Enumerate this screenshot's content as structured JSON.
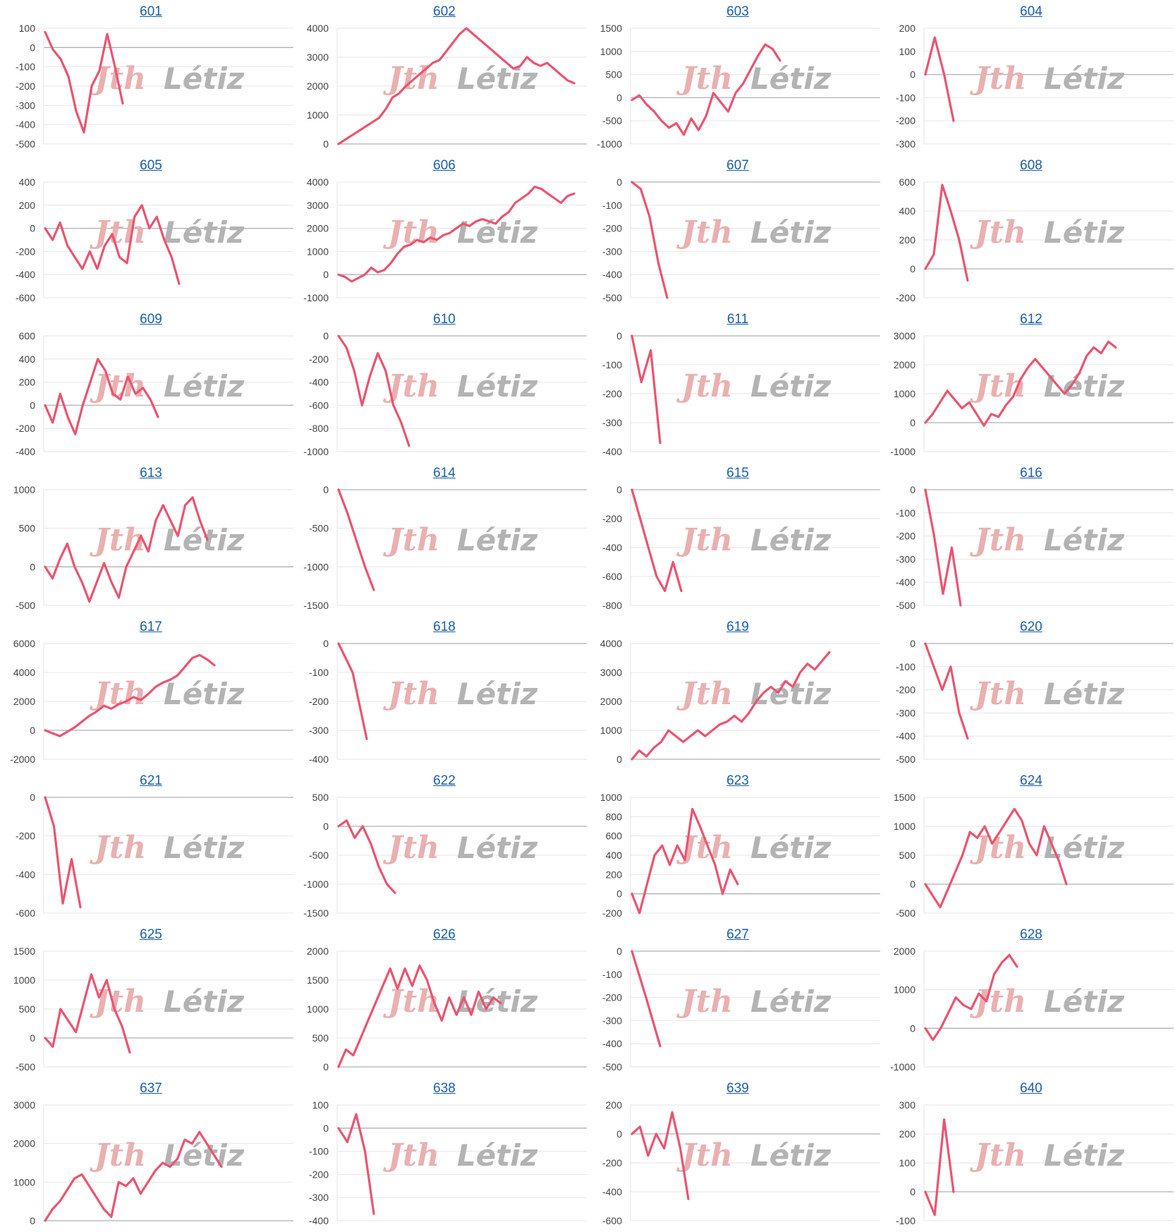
{
  "watermark": {
    "part1": "Jth",
    "part2": "Létiz",
    "color1": "#e9b0b0",
    "color2": "#b3b3b3"
  },
  "line_color": "#ea5470",
  "link_color": "#1a5ea8",
  "chart_data": [
    {
      "title": "601",
      "type": "line",
      "ylim": [
        -500,
        100
      ],
      "yticks": [
        100,
        0,
        -100,
        -200,
        -300,
        -400,
        -500
      ],
      "y": [
        80,
        -10,
        -60,
        -150,
        -330,
        -440,
        -200,
        -120,
        70,
        -100,
        -290
      ]
    },
    {
      "title": "602",
      "type": "line",
      "ylim": [
        0,
        4000
      ],
      "yticks": [
        4000,
        3000,
        2000,
        1000,
        0
      ],
      "y": [
        0,
        150,
        300,
        450,
        600,
        750,
        900,
        1200,
        1600,
        1750,
        2000,
        2200,
        2400,
        2600,
        2800,
        2900,
        3200,
        3500,
        3800,
        4000,
        3800,
        3600,
        3400,
        3200,
        3000,
        2800,
        2600,
        2700,
        3000,
        2800,
        2700,
        2800,
        2600,
        2400,
        2200,
        2100
      ]
    },
    {
      "title": "603",
      "type": "line",
      "ylim": [
        -1000,
        1500
      ],
      "yticks": [
        1500,
        1000,
        500,
        0,
        -500,
        -1000
      ],
      "y": [
        -50,
        50,
        -150,
        -300,
        -500,
        -650,
        -550,
        -800,
        -450,
        -700,
        -400,
        100,
        -100,
        -300,
        100,
        300,
        600,
        900,
        1150,
        1050,
        800
      ]
    },
    {
      "title": "604",
      "type": "line",
      "ylim": [
        -300,
        200
      ],
      "yticks": [
        200,
        100,
        0,
        -100,
        -200,
        -300
      ],
      "y": [
        0,
        160,
        0,
        -200
      ]
    },
    {
      "title": "605",
      "type": "line",
      "ylim": [
        -600,
        400
      ],
      "yticks": [
        400,
        200,
        0,
        -200,
        -400,
        -600
      ],
      "y": [
        0,
        -100,
        50,
        -150,
        -250,
        -350,
        -200,
        -350,
        -150,
        -50,
        -250,
        -300,
        100,
        200,
        0,
        100,
        -100,
        -250,
        -480
      ]
    },
    {
      "title": "606",
      "type": "line",
      "ylim": [
        -1000,
        4000
      ],
      "yticks": [
        4000,
        3000,
        2000,
        1000,
        0,
        -1000
      ],
      "y": [
        0,
        -100,
        -300,
        -150,
        0,
        300,
        100,
        200,
        500,
        900,
        1200,
        1300,
        1500,
        1400,
        1600,
        1500,
        1700,
        1800,
        2000,
        2200,
        2100,
        2300,
        2400,
        2300,
        2200,
        2500,
        2700,
        3100,
        3300,
        3500,
        3800,
        3700,
        3500,
        3300,
        3100,
        3400,
        3500
      ]
    },
    {
      "title": "607",
      "type": "line",
      "ylim": [
        -500,
        0
      ],
      "yticks": [
        0,
        -100,
        -200,
        -300,
        -400,
        -500
      ],
      "y": [
        0,
        -30,
        -150,
        -350,
        -500
      ]
    },
    {
      "title": "608",
      "type": "line",
      "ylim": [
        -200,
        600
      ],
      "yticks": [
        600,
        400,
        200,
        0,
        -200
      ],
      "y": [
        0,
        100,
        580,
        400,
        200,
        -80
      ]
    },
    {
      "title": "609",
      "type": "line",
      "ylim": [
        -400,
        600
      ],
      "yticks": [
        600,
        400,
        200,
        0,
        -200,
        -400
      ],
      "y": [
        0,
        -150,
        100,
        -100,
        -250,
        0,
        200,
        400,
        300,
        100,
        50,
        250,
        100,
        150,
        50,
        -100
      ]
    },
    {
      "title": "610",
      "type": "line",
      "ylim": [
        -1000,
        0
      ],
      "yticks": [
        0,
        -200,
        -400,
        -600,
        -800,
        -1000
      ],
      "y": [
        0,
        -100,
        -300,
        -600,
        -350,
        -150,
        -300,
        -600,
        -750,
        -950
      ]
    },
    {
      "title": "611",
      "type": "line",
      "ylim": [
        -400,
        0
      ],
      "yticks": [
        0,
        -100,
        -200,
        -300,
        -400
      ],
      "y": [
        0,
        -160,
        -50,
        -370
      ]
    },
    {
      "title": "612",
      "type": "line",
      "ylim": [
        -1000,
        3000
      ],
      "yticks": [
        3000,
        2000,
        1000,
        0,
        -1000
      ],
      "y": [
        0,
        300,
        700,
        1100,
        800,
        500,
        700,
        300,
        -100,
        300,
        200,
        600,
        900,
        1500,
        1900,
        2200,
        1900,
        1600,
        1300,
        1000,
        1300,
        1700,
        2300,
        2600,
        2400,
        2800,
        2600
      ]
    },
    {
      "title": "613",
      "type": "line",
      "ylim": [
        -500,
        1000
      ],
      "yticks": [
        1000,
        500,
        0,
        -500
      ],
      "y": [
        0,
        -150,
        100,
        300,
        0,
        -200,
        -450,
        -200,
        50,
        -200,
        -400,
        0,
        200,
        400,
        200,
        600,
        800,
        600,
        400,
        800,
        900,
        600,
        350
      ]
    },
    {
      "title": "614",
      "type": "line",
      "ylim": [
        -1500,
        0
      ],
      "yticks": [
        0,
        -500,
        -1000,
        -1500
      ],
      "y": [
        0,
        -300,
        -650,
        -1000,
        -1300
      ]
    },
    {
      "title": "615",
      "type": "line",
      "ylim": [
        -800,
        0
      ],
      "yticks": [
        0,
        -200,
        -400,
        -600,
        -800
      ],
      "y": [
        0,
        -200,
        -400,
        -600,
        -700,
        -500,
        -700
      ]
    },
    {
      "title": "616",
      "type": "line",
      "ylim": [
        -500,
        0
      ],
      "yticks": [
        0,
        -100,
        -200,
        -300,
        -400,
        -500
      ],
      "y": [
        0,
        -200,
        -450,
        -250,
        -500
      ]
    },
    {
      "title": "617",
      "type": "line",
      "ylim": [
        -2000,
        6000
      ],
      "yticks": [
        6000,
        4000,
        2000,
        0,
        -2000
      ],
      "y": [
        0,
        -200,
        -400,
        -100,
        200,
        600,
        1000,
        1300,
        1700,
        1500,
        1800,
        2000,
        2300,
        2100,
        2500,
        3000,
        3300,
        3500,
        3800,
        4400,
        5000,
        5200,
        4900,
        4500
      ]
    },
    {
      "title": "618",
      "type": "line",
      "ylim": [
        -400,
        0
      ],
      "yticks": [
        0,
        -100,
        -200,
        -300,
        -400
      ],
      "y": [
        0,
        -100,
        -330
      ]
    },
    {
      "title": "619",
      "type": "line",
      "ylim": [
        0,
        4000
      ],
      "yticks": [
        4000,
        3000,
        2000,
        1000,
        0
      ],
      "y": [
        0,
        300,
        100,
        400,
        600,
        1000,
        800,
        600,
        800,
        1000,
        800,
        1000,
        1200,
        1300,
        1500,
        1300,
        1600,
        2000,
        2300,
        2500,
        2300,
        2700,
        2500,
        3000,
        3300,
        3100,
        3400,
        3700
      ]
    },
    {
      "title": "620",
      "type": "line",
      "ylim": [
        -500,
        0
      ],
      "yticks": [
        0,
        -100,
        -200,
        -300,
        -400,
        -500
      ],
      "y": [
        0,
        -100,
        -200,
        -100,
        -300,
        -410
      ]
    },
    {
      "title": "621",
      "type": "line",
      "ylim": [
        -600,
        0
      ],
      "yticks": [
        0,
        -200,
        -400,
        -600
      ],
      "y": [
        0,
        -150,
        -550,
        -320,
        -570
      ]
    },
    {
      "title": "622",
      "type": "line",
      "ylim": [
        -1500,
        500
      ],
      "yticks": [
        500,
        0,
        -500,
        -1000,
        -1500
      ],
      "y": [
        0,
        100,
        -200,
        0,
        -300,
        -700,
        -1000,
        -1150
      ]
    },
    {
      "title": "623",
      "type": "line",
      "ylim": [
        -200,
        1000
      ],
      "yticks": [
        1000,
        800,
        600,
        400,
        200,
        0,
        -200
      ],
      "y": [
        0,
        -200,
        100,
        400,
        500,
        300,
        500,
        350,
        880,
        700,
        500,
        300,
        0,
        250,
        100
      ]
    },
    {
      "title": "624",
      "type": "line",
      "ylim": [
        -500,
        1500
      ],
      "yticks": [
        1500,
        1000,
        500,
        0,
        -500
      ],
      "y": [
        0,
        -200,
        -400,
        -100,
        200,
        500,
        900,
        800,
        1000,
        700,
        900,
        1100,
        1300,
        1100,
        700,
        500,
        1000,
        700,
        400,
        0
      ]
    },
    {
      "title": "625",
      "type": "line",
      "ylim": [
        -500,
        1500
      ],
      "yticks": [
        1500,
        1000,
        500,
        0,
        -500
      ],
      "y": [
        0,
        -150,
        500,
        300,
        100,
        600,
        1100,
        700,
        1000,
        500,
        200,
        -250
      ]
    },
    {
      "title": "626",
      "type": "line",
      "ylim": [
        0,
        2000
      ],
      "yticks": [
        2000,
        1500,
        1000,
        500,
        0
      ],
      "y": [
        0,
        300,
        200,
        500,
        800,
        1100,
        1400,
        1700,
        1350,
        1700,
        1400,
        1750,
        1500,
        1100,
        800,
        1200,
        900,
        1200,
        900,
        1300,
        1000,
        1200,
        1100
      ]
    },
    {
      "title": "627",
      "type": "line",
      "ylim": [
        -500,
        0
      ],
      "yticks": [
        0,
        -100,
        -200,
        -300,
        -400,
        -500
      ],
      "y": [
        0,
        -200,
        -410
      ]
    },
    {
      "title": "628",
      "type": "line",
      "ylim": [
        -1000,
        2000
      ],
      "yticks": [
        2000,
        1000,
        0,
        -1000
      ],
      "y": [
        0,
        -300,
        0,
        400,
        800,
        600,
        500,
        900,
        700,
        1400,
        1700,
        1900,
        1600
      ]
    },
    {
      "title": "637",
      "type": "line",
      "ylim": [
        0,
        3000
      ],
      "yticks": [
        3000,
        2000,
        1000,
        0
      ],
      "y": [
        0,
        300,
        500,
        800,
        1100,
        1200,
        900,
        600,
        300,
        100,
        1000,
        900,
        1100,
        700,
        1000,
        1300,
        1500,
        1400,
        1600,
        2100,
        2000,
        2300,
        2000,
        1700,
        1400
      ]
    },
    {
      "title": "638",
      "type": "line",
      "ylim": [
        -400,
        100
      ],
      "yticks": [
        100,
        0,
        -100,
        -200,
        -300,
        -400
      ],
      "y": [
        0,
        -60,
        60,
        -100,
        -370
      ]
    },
    {
      "title": "639",
      "type": "line",
      "ylim": [
        -600,
        200
      ],
      "yticks": [
        200,
        0,
        -200,
        -400,
        -600
      ],
      "y": [
        0,
        50,
        -150,
        0,
        -100,
        150,
        -100,
        -450
      ]
    },
    {
      "title": "640",
      "type": "line",
      "ylim": [
        -100,
        300
      ],
      "yticks": [
        300,
        200,
        100,
        0,
        -100
      ],
      "y": [
        0,
        -80,
        250,
        0
      ]
    }
  ]
}
